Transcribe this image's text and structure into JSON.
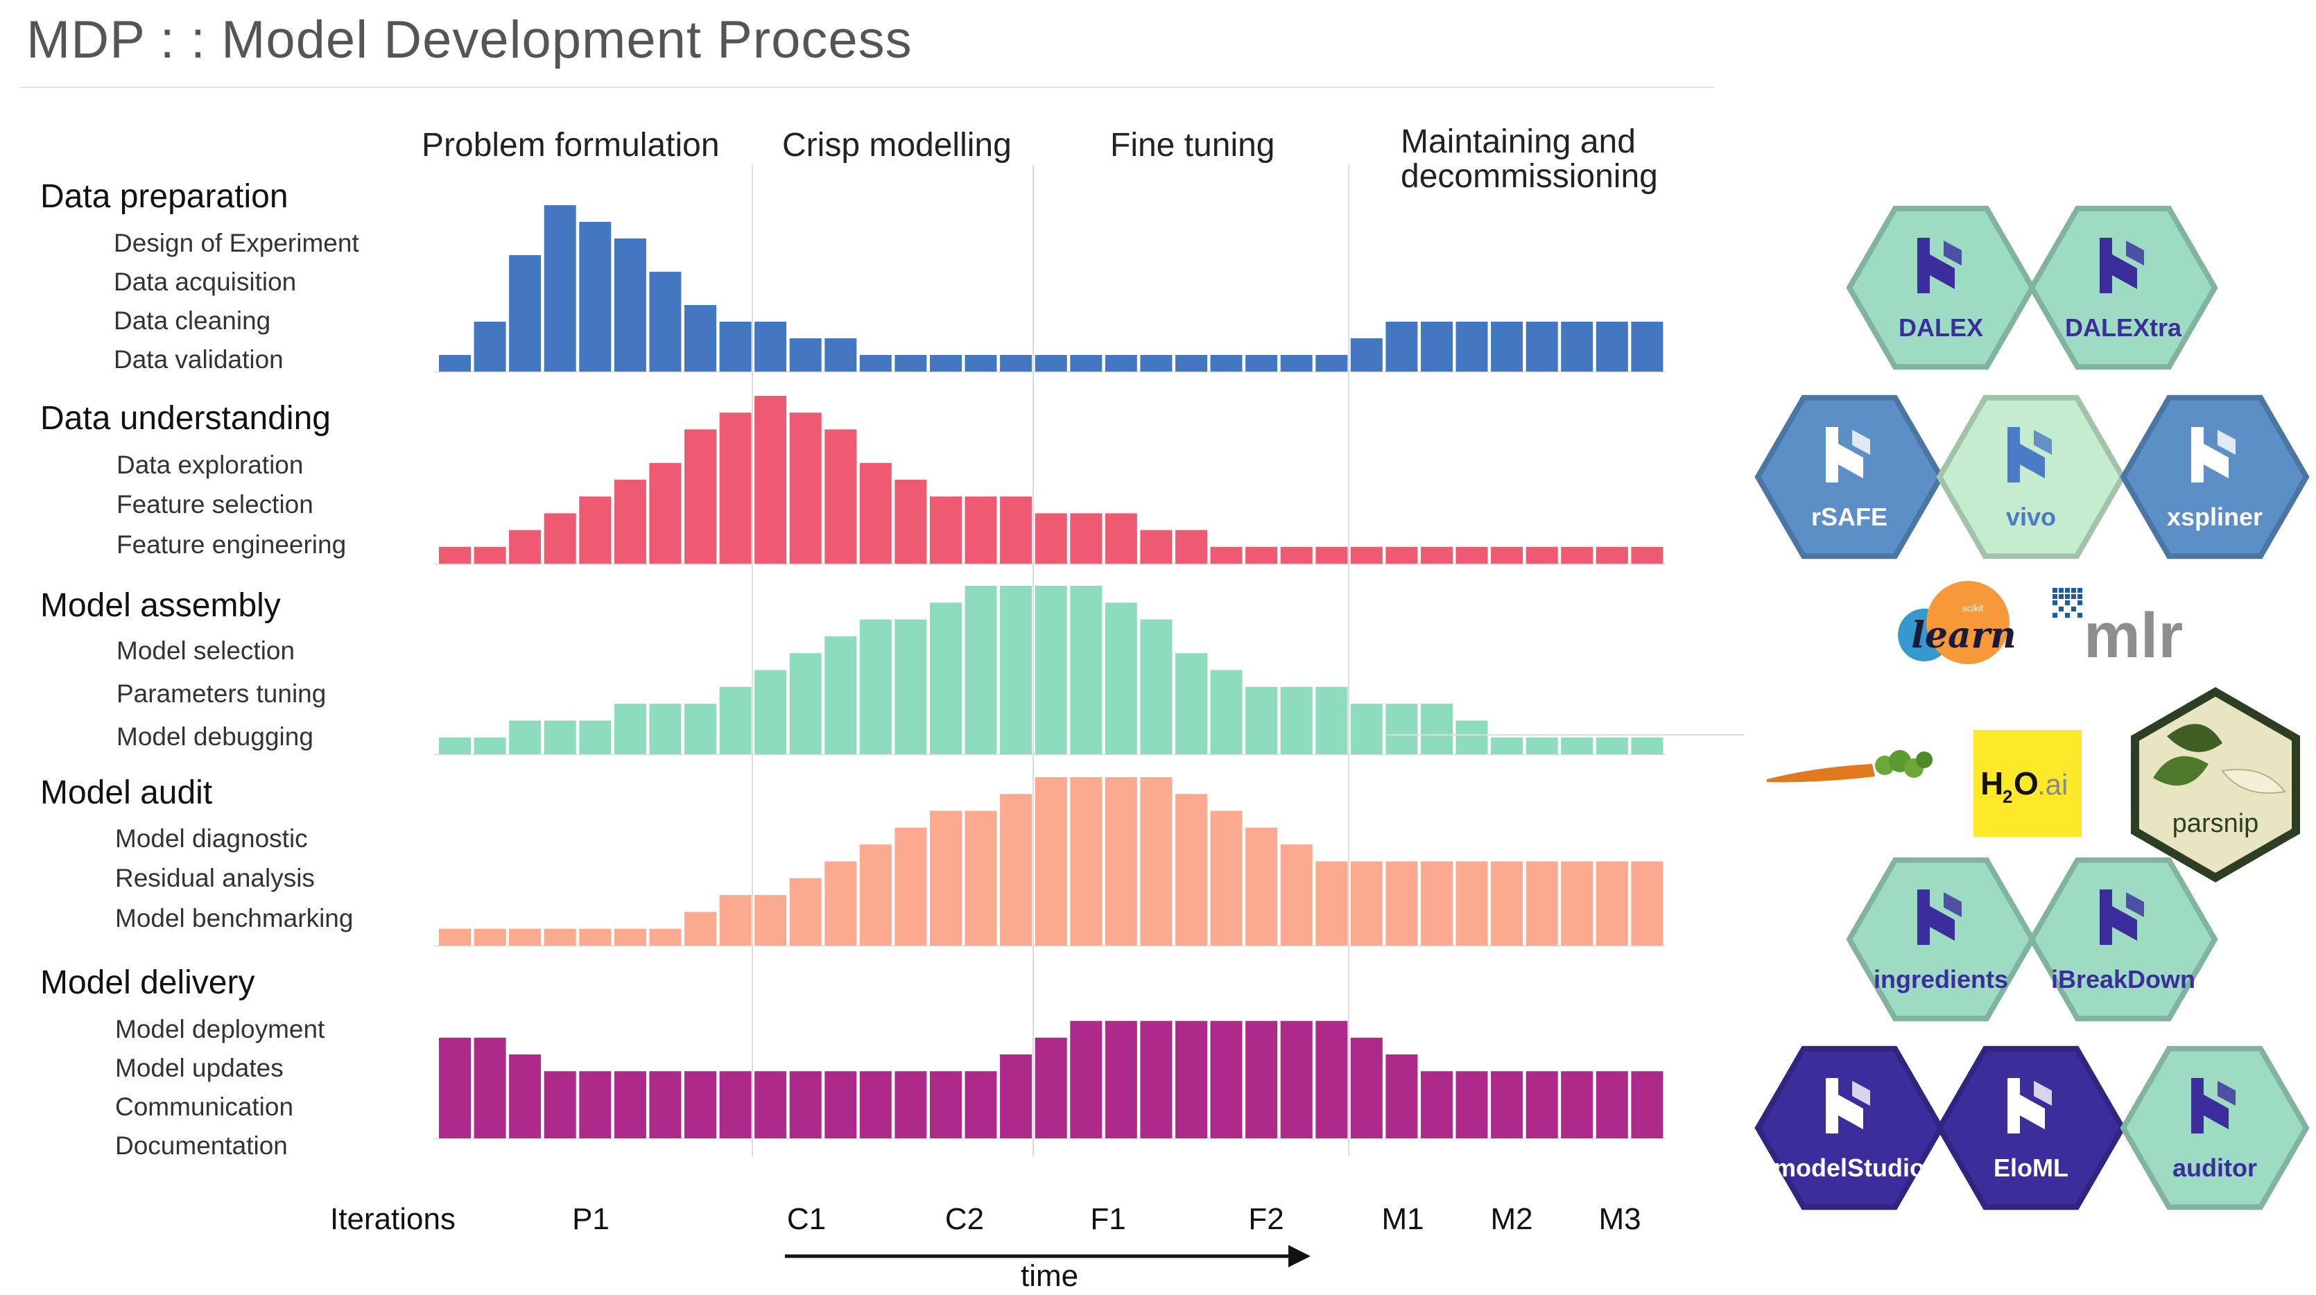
{
  "title": "MDP  : :  Model Development Process",
  "colors": {
    "data_preparation": "#4477c1",
    "data_understanding": "#ef5a73",
    "model_assembly": "#8cdcbd",
    "model_audit": "#fba98f",
    "model_delivery": "#ad2a8a"
  },
  "phases": [
    {
      "label": "Problem formulation"
    },
    {
      "label": "Crisp modelling"
    },
    {
      "label": "Fine tuning"
    },
    {
      "label_line1": "Maintaining and",
      "label_line2": "decommissioning"
    }
  ],
  "groups": [
    {
      "title": "Data preparation",
      "items": [
        "Design of Experiment",
        "Data acquisition",
        "Data cleaning",
        "Data validation"
      ]
    },
    {
      "title": "Data understanding",
      "items": [
        "Data exploration",
        "Feature selection",
        "Feature engineering"
      ]
    },
    {
      "title": "Model assembly",
      "items": [
        "Model selection",
        "Parameters tuning",
        "Model debugging"
      ]
    },
    {
      "title": "Model audit",
      "items": [
        "Model diagnostic",
        "Residual analysis",
        "Model benchmarking"
      ]
    },
    {
      "title": "Model delivery",
      "items": [
        "Model deployment",
        "Model updates",
        "Communication",
        "Documentation"
      ]
    }
  ],
  "iterations_title": "Iterations",
  "iterations": [
    "P1",
    "C1",
    "C2",
    "F1",
    "F2",
    "M1",
    "M2",
    "M3"
  ],
  "time_label": "time",
  "chart_data": {
    "type": "bar",
    "bars_per_series": 35,
    "series": [
      {
        "values": [
          1,
          3,
          7,
          10,
          9,
          8,
          6,
          4,
          3,
          3,
          2,
          2,
          1,
          1,
          1,
          1,
          1,
          1,
          1,
          1,
          1,
          1,
          1,
          1,
          1,
          1,
          2,
          3,
          3,
          3,
          3,
          3,
          3,
          3,
          3
        ]
      },
      {
        "values": [
          1,
          1,
          2,
          3,
          4,
          5,
          6,
          8,
          9,
          10,
          9,
          8,
          6,
          5,
          4,
          4,
          4,
          3,
          3,
          3,
          2,
          2,
          1,
          1,
          1,
          1,
          1,
          1,
          1,
          1,
          1,
          1,
          1,
          1,
          1
        ]
      },
      {
        "values": [
          1,
          1,
          2,
          2,
          2,
          3,
          3,
          3,
          4,
          5,
          6,
          7,
          8,
          8,
          9,
          10,
          10,
          10,
          10,
          9,
          8,
          6,
          5,
          4,
          4,
          4,
          3,
          3,
          3,
          2,
          1,
          1,
          1,
          1,
          1
        ]
      },
      {
        "values": [
          1,
          1,
          1,
          1,
          1,
          1,
          1,
          2,
          3,
          3,
          4,
          5,
          6,
          7,
          8,
          8,
          9,
          10,
          10,
          10,
          10,
          9,
          8,
          7,
          6,
          5,
          5,
          5,
          5,
          5,
          5,
          5,
          5,
          5,
          5
        ]
      },
      {
        "values": [
          6,
          6,
          5,
          4,
          4,
          4,
          4,
          4,
          4,
          4,
          4,
          4,
          4,
          4,
          4,
          4,
          5,
          6,
          7,
          7,
          7,
          7,
          7,
          7,
          7,
          7,
          6,
          5,
          4,
          4,
          4,
          4,
          4,
          4,
          4
        ]
      }
    ]
  },
  "logos": {
    "hex_top": [
      {
        "label": "DALEX",
        "fill": "#9ddcc3",
        "text": "#3b2d9c"
      },
      {
        "label": "DALEXtra",
        "fill": "#9ddcc3",
        "text": "#3b2d9c"
      },
      {
        "label": "rSAFE",
        "fill": "#5b8fc6",
        "text": "#ffffff"
      },
      {
        "label": "vivo",
        "fill": "#c5eccf",
        "text": "#4a7bc4"
      },
      {
        "label": "xspliner",
        "fill": "#5b8fc6",
        "text": "#ffffff"
      }
    ],
    "sklearn": "learn",
    "sklearn_small": "scikit",
    "mlr": "mlr",
    "h2o_main": "H",
    "h2o_sub": "2",
    "h2o_o": "O",
    "h2o_ai": ".ai",
    "parsnip": "parsnip",
    "hex_bottom": [
      {
        "label": "ingredients",
        "fill": "#9ddcc3",
        "text": "#3b2d9c"
      },
      {
        "label": "iBreakDown",
        "fill": "#9ddcc3",
        "text": "#3b2d9c"
      },
      {
        "label": "modelStudio",
        "fill": "#3b2d9c",
        "text": "#ffffff"
      },
      {
        "label": "EloML",
        "fill": "#3b2d9c",
        "text": "#ffffff"
      },
      {
        "label": "auditor",
        "fill": "#9ddcc3",
        "text": "#3b2d9c"
      }
    ]
  }
}
